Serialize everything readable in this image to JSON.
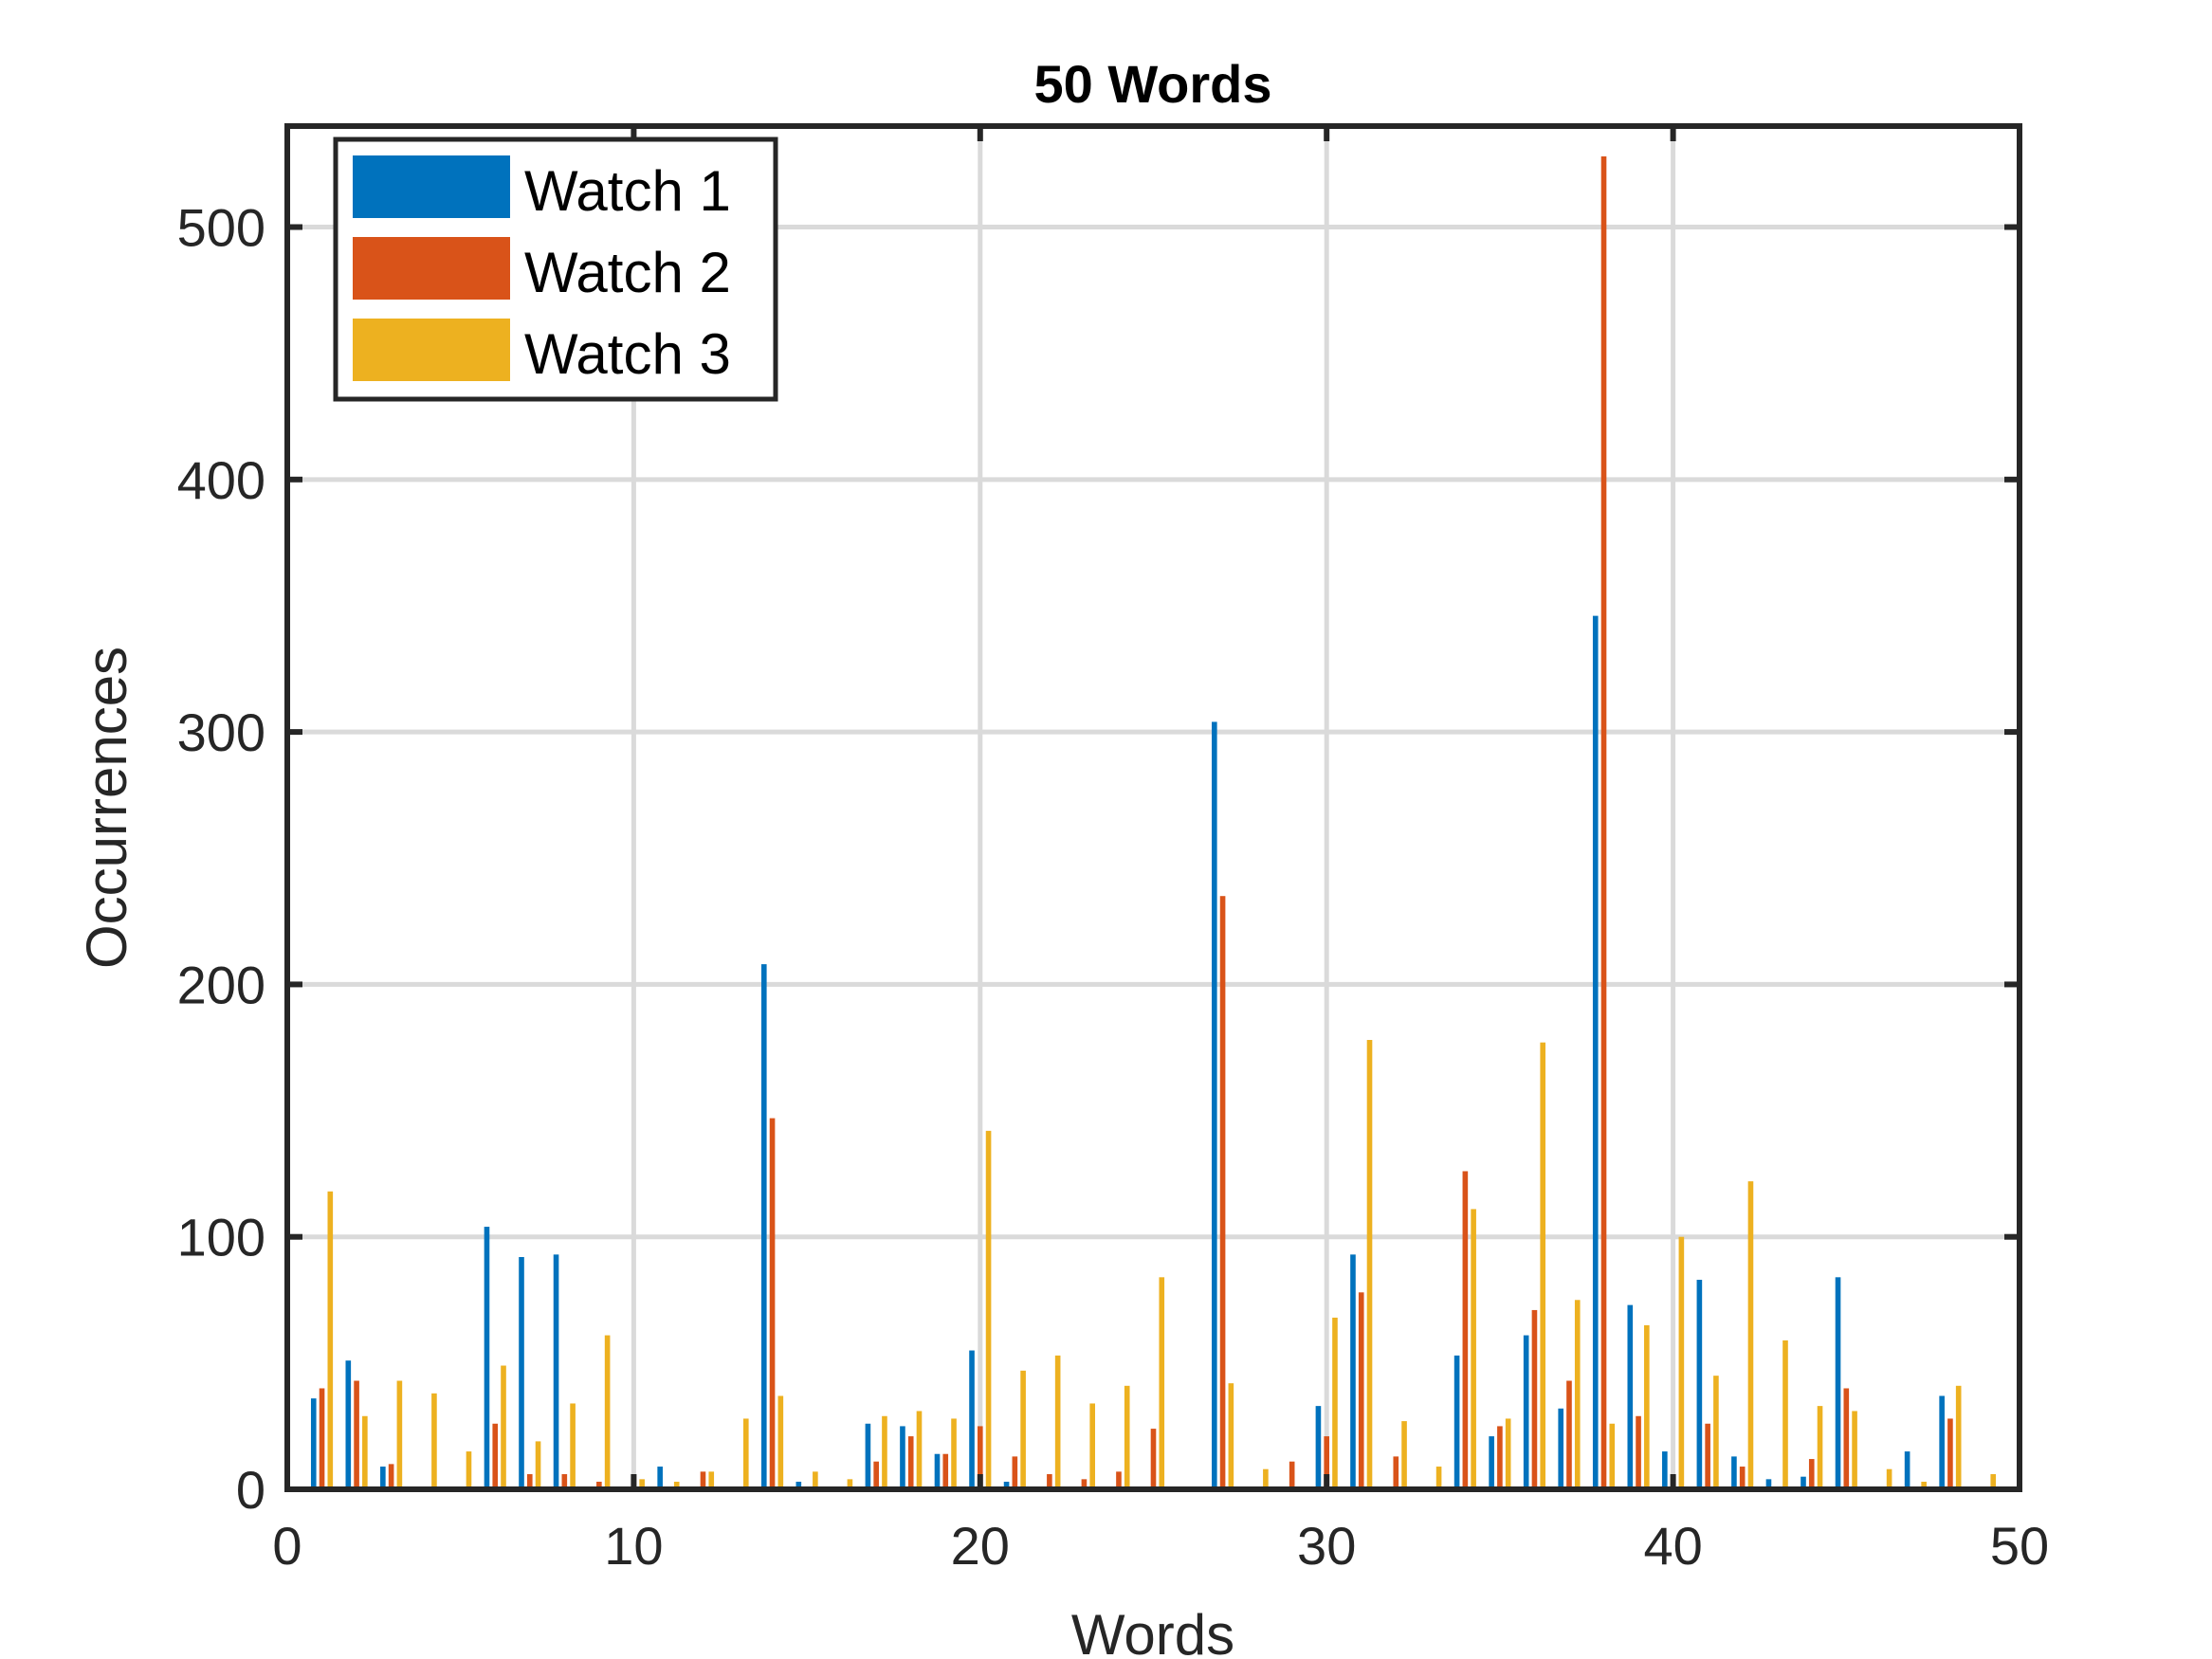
{
  "chart_data": {
    "type": "bar",
    "title": "50 Words",
    "xlabel": "Words",
    "ylabel": "Occurrences",
    "xlim": [
      0,
      50
    ],
    "ylim": [
      0,
      540
    ],
    "xticks": [
      0,
      10,
      20,
      30,
      40,
      50
    ],
    "yticks": [
      0,
      100,
      200,
      300,
      400,
      500
    ],
    "grid": true,
    "legend_position": "top-left",
    "categories": [
      1,
      2,
      3,
      4,
      5,
      6,
      7,
      8,
      9,
      10,
      11,
      12,
      13,
      14,
      15,
      16,
      17,
      18,
      19,
      20,
      21,
      22,
      23,
      24,
      25,
      26,
      27,
      28,
      29,
      30,
      31,
      32,
      33,
      34,
      35,
      36,
      37,
      38,
      39,
      40,
      41,
      42,
      43,
      44,
      45,
      46,
      47,
      48,
      49
    ],
    "series": [
      {
        "name": "Watch 1",
        "color": "#0072BD",
        "values": [
          36,
          51,
          9,
          1,
          0,
          104,
          92,
          93,
          0,
          0,
          9,
          0,
          1,
          208,
          3,
          0,
          26,
          25,
          14,
          55,
          3,
          0,
          0,
          0,
          1,
          0,
          304,
          0,
          0,
          33,
          93,
          0,
          0,
          53,
          21,
          61,
          32,
          346,
          73,
          15,
          83,
          13,
          4,
          5,
          84,
          0,
          15,
          37,
          1
        ]
      },
      {
        "name": "Watch 2",
        "color": "#D95319",
        "values": [
          40,
          43,
          10,
          0,
          0,
          26,
          6,
          6,
          3,
          0,
          0,
          7,
          0,
          147,
          0,
          0,
          11,
          21,
          14,
          25,
          13,
          6,
          4,
          7,
          24,
          0,
          235,
          0,
          11,
          21,
          78,
          13,
          0,
          126,
          25,
          71,
          43,
          528,
          29,
          0,
          26,
          9,
          1,
          12,
          40,
          0,
          0,
          28,
          1
        ]
      },
      {
        "name": "Watch 3",
        "color": "#EDB120",
        "values": [
          118,
          29,
          43,
          38,
          15,
          49,
          19,
          34,
          61,
          4,
          3,
          7,
          28,
          37,
          7,
          4,
          29,
          31,
          28,
          142,
          47,
          53,
          34,
          41,
          84,
          0,
          42,
          8,
          0,
          68,
          178,
          27,
          9,
          111,
          28,
          177,
          75,
          26,
          65,
          100,
          45,
          122,
          59,
          33,
          31,
          8,
          3,
          41,
          6
        ]
      }
    ]
  }
}
